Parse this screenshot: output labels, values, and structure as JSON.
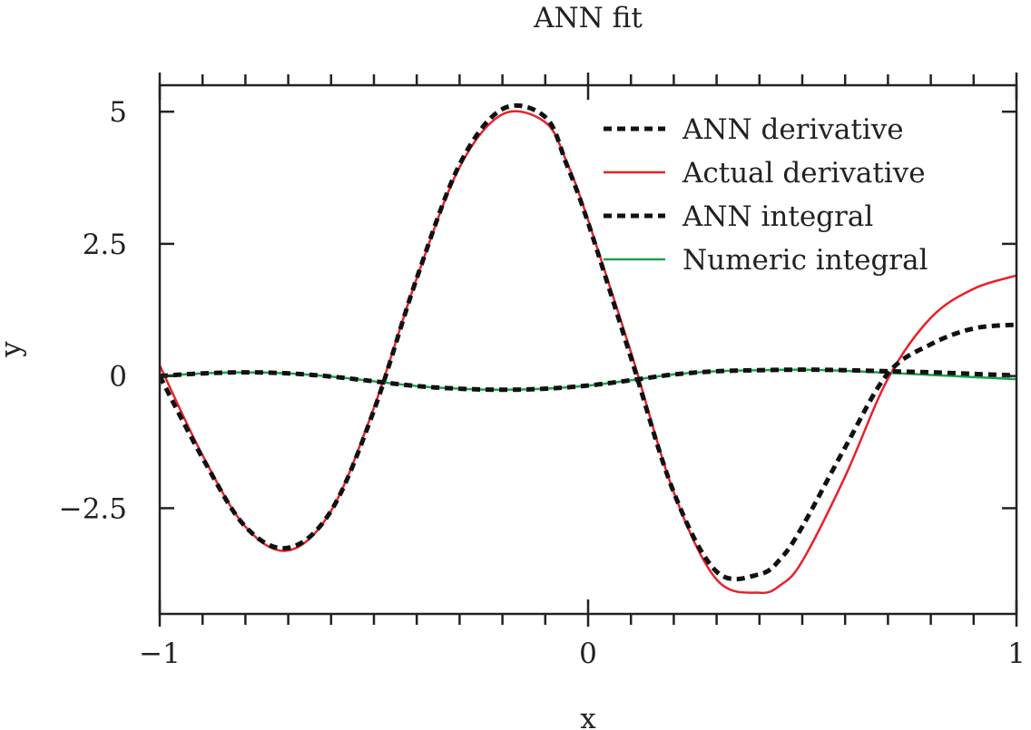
{
  "chart_data": {
    "type": "line",
    "title": "ANN fit",
    "xlabel": "x",
    "ylabel": "y",
    "xlim": [
      -1,
      1
    ],
    "ylim": [
      -4.5,
      5.5
    ],
    "xticks": [
      -1,
      0,
      1
    ],
    "xtick_labels": [
      "−1",
      "0",
      "1"
    ],
    "yticks": [
      5,
      2.5,
      0,
      -2.5
    ],
    "ytick_labels": [
      "5",
      "2.5",
      "0",
      "−2.5"
    ],
    "grid": false,
    "legend_position": "top-right",
    "series": [
      {
        "name": "ANN derivative",
        "color": "#111111",
        "style": "dashed",
        "x": [
          -1.0,
          -0.9,
          -0.8,
          -0.7,
          -0.6,
          -0.5,
          -0.4,
          -0.3,
          -0.2,
          -0.1,
          -0.05,
          0.0,
          0.1,
          0.2,
          0.3,
          0.4,
          0.45,
          0.5,
          0.6,
          0.7,
          0.8,
          0.9,
          1.0
        ],
        "y": [
          0.0,
          -1.55,
          -2.85,
          -3.25,
          -2.55,
          -0.65,
          1.85,
          4.0,
          5.05,
          4.9,
          4.0,
          2.9,
          0.35,
          -2.2,
          -3.7,
          -3.75,
          -3.45,
          -2.85,
          -1.35,
          0.05,
          0.6,
          0.9,
          0.97
        ]
      },
      {
        "name": "Actual derivative",
        "color": "#e8212a",
        "style": "solid",
        "x": [
          -1.0,
          -0.9,
          -0.8,
          -0.7,
          -0.6,
          -0.5,
          -0.4,
          -0.3,
          -0.2,
          -0.1,
          -0.05,
          0.0,
          0.1,
          0.2,
          0.3,
          0.4,
          0.45,
          0.5,
          0.6,
          0.7,
          0.8,
          0.9,
          1.0
        ],
        "y": [
          0.2,
          -1.5,
          -2.85,
          -3.3,
          -2.55,
          -0.6,
          1.85,
          3.95,
          4.95,
          4.8,
          4.05,
          2.95,
          0.45,
          -2.2,
          -3.85,
          -4.1,
          -3.95,
          -3.5,
          -1.9,
          -0.05,
          1.1,
          1.65,
          1.9
        ]
      },
      {
        "name": "ANN integral",
        "color": "#111111",
        "style": "dashed",
        "x": [
          -1.0,
          -0.9,
          -0.8,
          -0.7,
          -0.6,
          -0.5,
          -0.4,
          -0.3,
          -0.2,
          -0.1,
          0.0,
          0.1,
          0.2,
          0.3,
          0.4,
          0.5,
          0.6,
          0.7,
          0.8,
          0.9,
          1.0
        ],
        "y": [
          0.0,
          0.05,
          0.07,
          0.05,
          -0.01,
          -0.1,
          -0.19,
          -0.24,
          -0.26,
          -0.24,
          -0.18,
          -0.08,
          0.03,
          0.09,
          0.11,
          0.12,
          0.11,
          0.09,
          0.07,
          0.04,
          0.01
        ]
      },
      {
        "name": "Numeric integral",
        "color": "#1aa34a",
        "style": "solid",
        "x": [
          -1.0,
          -0.9,
          -0.8,
          -0.7,
          -0.6,
          -0.5,
          -0.4,
          -0.3,
          -0.2,
          -0.1,
          0.0,
          0.1,
          0.2,
          0.3,
          0.4,
          0.5,
          0.6,
          0.7,
          0.8,
          0.9,
          1.0
        ],
        "y": [
          0.0,
          0.05,
          0.07,
          0.05,
          -0.01,
          -0.1,
          -0.19,
          -0.24,
          -0.26,
          -0.24,
          -0.18,
          -0.08,
          0.03,
          0.09,
          0.11,
          0.12,
          0.1,
          0.06,
          0.02,
          -0.02,
          -0.06
        ]
      }
    ]
  }
}
